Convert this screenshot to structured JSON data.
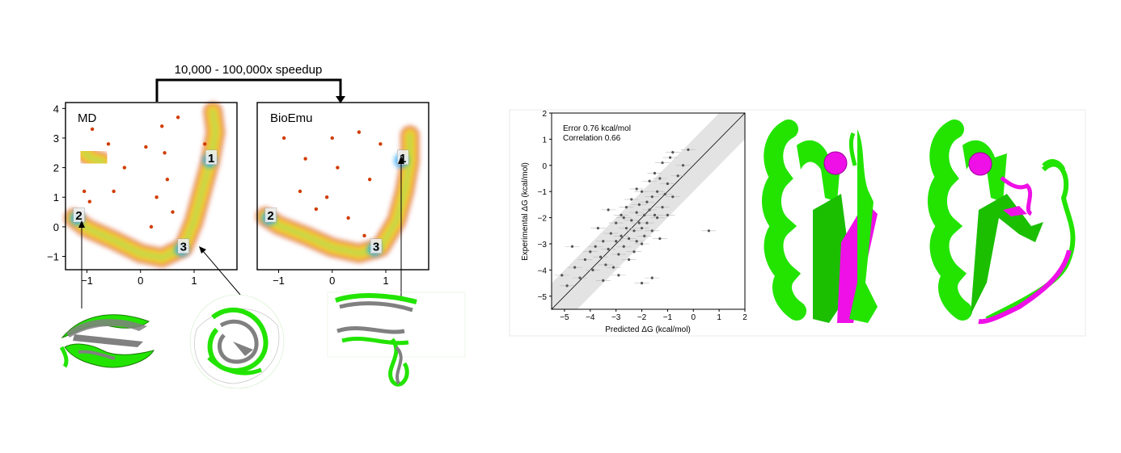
{
  "speedup_label": "10,000 - 100,000x speedup",
  "colors": {
    "frame": "#000000",
    "protein_green": "#22e400",
    "protein_gray": "#808080",
    "highlight_magenta": "#ee10e6",
    "band_gray": "#e0e0e0",
    "point_gray": "#555555",
    "density_low": "#d13c00",
    "density_mid": "#ffd21a",
    "density_high": "#1ea7ff"
  },
  "icons": [
    "protein-structure-overlay-icon",
    "protein-cartoon-icon"
  ],
  "chart_data": [
    {
      "type": "scatter",
      "title": "MD",
      "xlabel": "",
      "ylabel": "",
      "xlim": [
        -1.4,
        1.8
      ],
      "ylim": [
        -1.45,
        4.2
      ],
      "xticks": [
        -1,
        0,
        1
      ],
      "yticks": [
        -1,
        0,
        1,
        2,
        3,
        4
      ],
      "grid": false,
      "density_paths": [
        [
          [
            1.35,
            3.9
          ],
          [
            1.4,
            3.2
          ],
          [
            1.3,
            2.2
          ],
          [
            1.15,
            1.2
          ],
          [
            1.0,
            0.2
          ],
          [
            0.8,
            -0.7
          ],
          [
            0.4,
            -1.05
          ],
          [
            0.0,
            -0.9
          ],
          [
            -0.5,
            -0.45
          ],
          [
            -1.0,
            -0.05
          ],
          [
            -1.25,
            0.3
          ]
        ],
        [
          [
            -1.05,
            2.5
          ],
          [
            -0.9,
            2.3
          ],
          [
            -0.7,
            2.2
          ]
        ]
      ],
      "scatter_points": [
        [
          -0.9,
          3.3
        ],
        [
          -0.6,
          2.8
        ],
        [
          -0.3,
          2.0
        ],
        [
          0.1,
          2.7
        ],
        [
          0.4,
          3.4
        ],
        [
          0.45,
          2.5
        ],
        [
          0.5,
          1.6
        ],
        [
          0.7,
          3.7
        ],
        [
          0.3,
          1.0
        ],
        [
          -0.5,
          1.2
        ],
        [
          -1.05,
          1.2
        ],
        [
          -0.95,
          0.85
        ],
        [
          0.6,
          0.5
        ],
        [
          0.2,
          0.0
        ],
        [
          1.2,
          2.8
        ]
      ],
      "labels": [
        {
          "text": "1",
          "x": 1.32,
          "y": 2.35
        },
        {
          "text": "2",
          "x": -1.15,
          "y": 0.4
        },
        {
          "text": "3",
          "x": 0.8,
          "y": -0.65
        }
      ]
    },
    {
      "type": "scatter",
      "title": "BioEmu",
      "xlabel": "",
      "ylabel": "",
      "xlim": [
        -1.4,
        1.8
      ],
      "ylim": [
        -1.45,
        4.2
      ],
      "xticks": [
        -1,
        0,
        1
      ],
      "yticks": [],
      "grid": false,
      "density_paths": [
        [
          [
            1.45,
            3.1
          ],
          [
            1.45,
            2.2
          ],
          [
            1.35,
            1.2
          ],
          [
            1.2,
            0.2
          ],
          [
            0.9,
            -0.7
          ],
          [
            0.5,
            -0.9
          ],
          [
            0.0,
            -0.7
          ],
          [
            -0.5,
            -0.3
          ],
          [
            -1.0,
            0.05
          ],
          [
            -1.25,
            0.35
          ]
        ]
      ],
      "scatter_points": [
        [
          -0.9,
          3.0
        ],
        [
          -0.5,
          2.3
        ],
        [
          0.0,
          3.0
        ],
        [
          0.5,
          3.2
        ],
        [
          0.9,
          2.8
        ],
        [
          -0.6,
          1.2
        ],
        [
          -0.1,
          1.0
        ],
        [
          0.3,
          0.3
        ],
        [
          0.7,
          1.6
        ],
        [
          0.1,
          2.0
        ],
        [
          -0.3,
          0.6
        ],
        [
          0.6,
          -0.3
        ]
      ],
      "labels": [
        {
          "text": "1",
          "x": 1.32,
          "y": 2.35
        },
        {
          "text": "2",
          "x": -1.15,
          "y": 0.4
        },
        {
          "text": "3",
          "x": 0.82,
          "y": -0.65
        }
      ]
    },
    {
      "type": "scatter",
      "title": "",
      "xlabel": "Predicted ΔG (kcal/mol)",
      "ylabel": "Experimental ΔG (kcal/mol)",
      "xlim": [
        -5.5,
        2
      ],
      "ylim": [
        -5.5,
        2
      ],
      "xticks": [
        -5,
        -4,
        -3,
        -2,
        -1,
        0,
        1,
        2
      ],
      "yticks": [
        -5,
        -4,
        -3,
        -2,
        -1,
        0,
        1,
        2
      ],
      "grid": false,
      "band_halfwidth": 1.0,
      "annotations": [
        "Error 0.76 kcal/mol",
        "Correlation 0.66"
      ],
      "points": [
        [
          -5.1,
          -4.2
        ],
        [
          -4.9,
          -4.6
        ],
        [
          -4.6,
          -3.9
        ],
        [
          -4.4,
          -4.3
        ],
        [
          -4.2,
          -3.6
        ],
        [
          -4.0,
          -3.3
        ],
        [
          -3.9,
          -4.0
        ],
        [
          -3.8,
          -3.1
        ],
        [
          -3.6,
          -3.5
        ],
        [
          -3.5,
          -2.9
        ],
        [
          -3.4,
          -3.8
        ],
        [
          -3.3,
          -3.2
        ],
        [
          -3.2,
          -2.6
        ],
        [
          -3.1,
          -3.9
        ],
        [
          -3.0,
          -2.9
        ],
        [
          -3.0,
          -2.2
        ],
        [
          -2.9,
          -3.4
        ],
        [
          -2.8,
          -2.7
        ],
        [
          -2.8,
          -1.9
        ],
        [
          -2.7,
          -3.1
        ],
        [
          -2.6,
          -2.4
        ],
        [
          -2.6,
          -1.6
        ],
        [
          -2.5,
          -3.6
        ],
        [
          -2.5,
          -2.8
        ],
        [
          -2.4,
          -2.1
        ],
        [
          -2.4,
          -1.3
        ],
        [
          -2.3,
          -3.3
        ],
        [
          -2.3,
          -2.5
        ],
        [
          -2.2,
          -1.8
        ],
        [
          -2.2,
          -2.9
        ],
        [
          -2.1,
          -2.2
        ],
        [
          -2.1,
          -1.5
        ],
        [
          -2.0,
          -3.0
        ],
        [
          -2.0,
          -2.4
        ],
        [
          -2.0,
          -1.0
        ],
        [
          -1.9,
          -1.9
        ],
        [
          -1.9,
          -2.7
        ],
        [
          -1.8,
          -1.4
        ],
        [
          -1.8,
          -2.2
        ],
        [
          -1.7,
          -0.6
        ],
        [
          -1.7,
          -1.7
        ],
        [
          -1.6,
          -2.5
        ],
        [
          -1.6,
          -1.2
        ],
        [
          -1.5,
          -0.3
        ],
        [
          -1.5,
          -1.9
        ],
        [
          -1.4,
          -1.0
        ],
        [
          -1.4,
          -2.0
        ],
        [
          -1.3,
          -0.5
        ],
        [
          -1.2,
          -1.6
        ],
        [
          -1.2,
          0.1
        ],
        [
          -1.1,
          -1.1
        ],
        [
          -1.0,
          -0.7
        ],
        [
          -1.0,
          -1.9
        ],
        [
          -0.9,
          0.3
        ],
        [
          -0.8,
          -1.2
        ],
        [
          -0.8,
          0.5
        ],
        [
          -0.6,
          -0.4
        ],
        [
          -0.4,
          0.0
        ],
        [
          -0.2,
          0.6
        ],
        [
          0.6,
          -2.5
        ],
        [
          -3.7,
          -2.4
        ],
        [
          -2.9,
          -4.2
        ],
        [
          -2.0,
          -4.5
        ],
        [
          -1.6,
          -4.3
        ],
        [
          -2.7,
          -2.0
        ],
        [
          -3.3,
          -1.7
        ],
        [
          -2.2,
          -0.9
        ],
        [
          -1.3,
          -2.8
        ],
        [
          -3.5,
          -4.4
        ],
        [
          -4.7,
          -3.1
        ]
      ]
    }
  ]
}
